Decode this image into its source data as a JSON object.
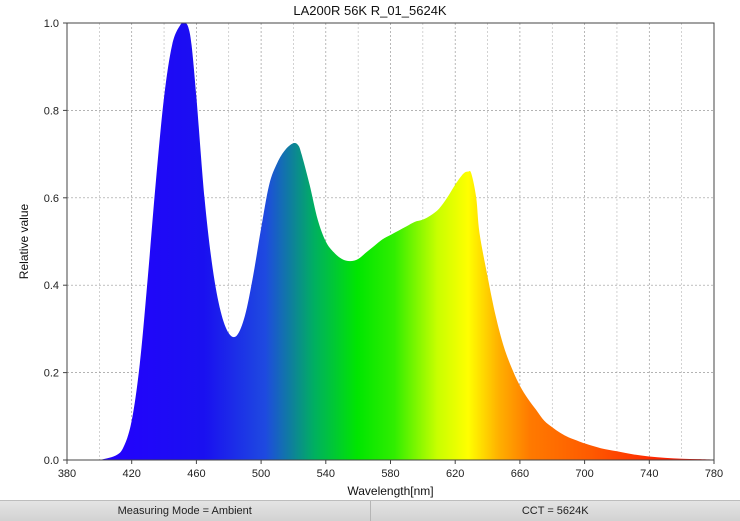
{
  "chart_data": {
    "type": "area",
    "title": "LA200R 56K R_01_5624K",
    "xlabel": "Wavelength[nm]",
    "ylabel": "Relative value",
    "xlim": [
      380,
      780
    ],
    "ylim": [
      0,
      1.0
    ],
    "x_ticks": [
      "380",
      "420",
      "460",
      "500",
      "540",
      "580",
      "620",
      "660",
      "700",
      "740",
      "780"
    ],
    "y_ticks": [
      "0.0",
      "0.2",
      "0.4",
      "0.6",
      "0.8",
      "1.0"
    ],
    "grid": true,
    "series": [
      {
        "x": [
          400,
          410,
          415,
          420,
          425,
          430,
          435,
          440,
          445,
          450,
          453,
          455,
          457,
          460,
          465,
          470,
          475,
          480,
          485,
          490,
          495,
          500,
          505,
          510,
          515,
          520,
          523,
          525,
          530,
          535,
          540,
          545,
          550,
          555,
          560,
          565,
          570,
          575,
          580,
          585,
          590,
          595,
          600,
          605,
          610,
          615,
          620,
          625,
          628,
          630,
          633,
          635,
          640,
          645,
          650,
          655,
          660,
          665,
          670,
          675,
          680,
          685,
          690,
          695,
          700,
          710,
          720,
          730,
          740,
          750,
          760,
          770,
          780
        ],
        "y": [
          0.0,
          0.01,
          0.03,
          0.09,
          0.22,
          0.42,
          0.64,
          0.83,
          0.95,
          0.995,
          1.0,
          0.99,
          0.95,
          0.83,
          0.6,
          0.44,
          0.34,
          0.29,
          0.285,
          0.33,
          0.42,
          0.53,
          0.63,
          0.68,
          0.71,
          0.725,
          0.72,
          0.7,
          0.63,
          0.55,
          0.5,
          0.475,
          0.46,
          0.455,
          0.46,
          0.475,
          0.49,
          0.505,
          0.515,
          0.525,
          0.535,
          0.545,
          0.55,
          0.56,
          0.575,
          0.6,
          0.63,
          0.655,
          0.66,
          0.655,
          0.6,
          0.52,
          0.42,
          0.33,
          0.26,
          0.21,
          0.17,
          0.14,
          0.115,
          0.09,
          0.075,
          0.062,
          0.052,
          0.045,
          0.038,
          0.027,
          0.02,
          0.013,
          0.008,
          0.005,
          0.003,
          0.002,
          0.001
        ]
      }
    ]
  },
  "status": {
    "measuring_mode": "Measuring Mode = Ambient",
    "cct": "CCT = 5624K"
  }
}
